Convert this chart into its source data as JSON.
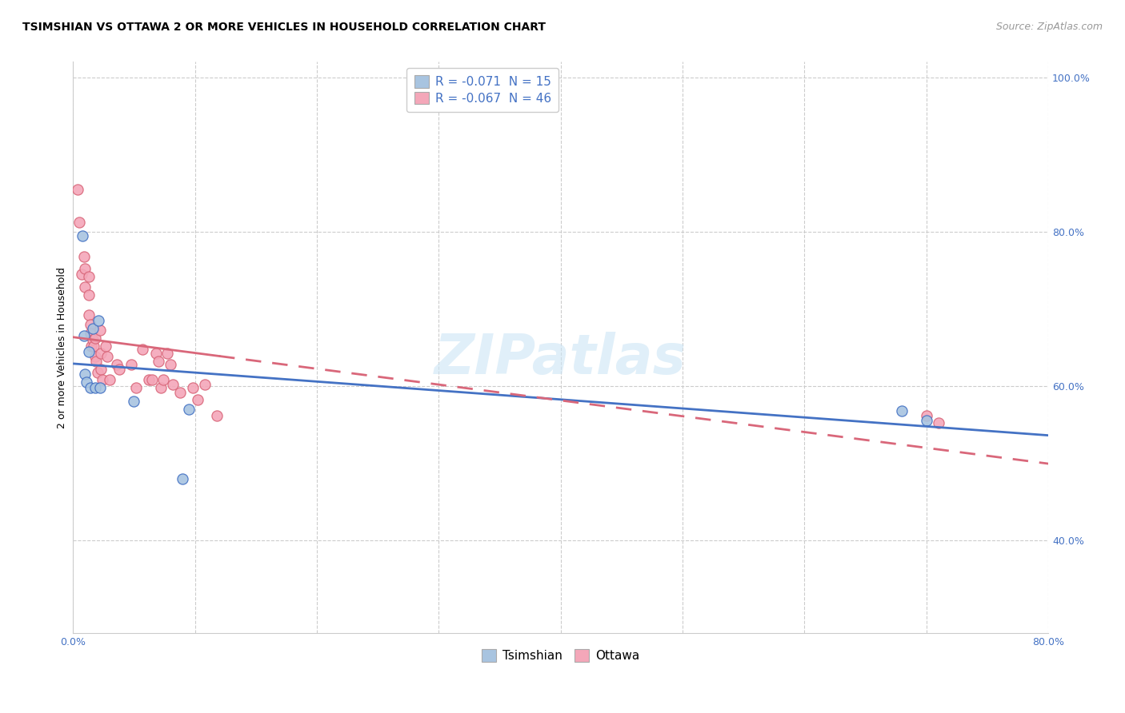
{
  "title": "TSIMSHIAN VS OTTAWA 2 OR MORE VEHICLES IN HOUSEHOLD CORRELATION CHART",
  "source": "Source: ZipAtlas.com",
  "ylabel": "2 or more Vehicles in Household",
  "watermark": "ZIPatlas",
  "xlim": [
    0.0,
    0.8
  ],
  "ylim": [
    0.28,
    1.02
  ],
  "yticks": [
    0.4,
    0.6,
    0.8,
    1.0
  ],
  "ytick_labels": [
    "40.0%",
    "60.0%",
    "80.0%",
    "100.0%"
  ],
  "legend_tsimshian": "R = -0.071  N = 15",
  "legend_ottawa": "R = -0.067  N = 46",
  "tsimshian_color": "#a8c4e0",
  "ottawa_color": "#f4a7b9",
  "tsimshian_line_color": "#4472c4",
  "ottawa_line_color": "#d9677a",
  "tsimshian_scatter_x": [
    0.008,
    0.009,
    0.01,
    0.011,
    0.013,
    0.014,
    0.016,
    0.018,
    0.021,
    0.022,
    0.05,
    0.09,
    0.095,
    0.68,
    0.7
  ],
  "tsimshian_scatter_y": [
    0.795,
    0.665,
    0.615,
    0.605,
    0.645,
    0.598,
    0.675,
    0.598,
    0.685,
    0.598,
    0.58,
    0.48,
    0.57,
    0.568,
    0.555
  ],
  "ottawa_scatter_x": [
    0.004,
    0.005,
    0.007,
    0.009,
    0.01,
    0.01,
    0.013,
    0.013,
    0.013,
    0.014,
    0.014,
    0.015,
    0.016,
    0.017,
    0.018,
    0.018,
    0.019,
    0.02,
    0.022,
    0.023,
    0.023,
    0.024,
    0.027,
    0.028,
    0.03,
    0.036,
    0.038,
    0.048,
    0.052,
    0.057,
    0.062,
    0.065,
    0.068,
    0.07,
    0.072,
    0.074,
    0.077,
    0.08,
    0.082,
    0.088,
    0.098,
    0.102,
    0.108,
    0.118,
    0.7,
    0.71
  ],
  "ottawa_scatter_y": [
    0.855,
    0.812,
    0.745,
    0.768,
    0.752,
    0.728,
    0.742,
    0.718,
    0.692,
    0.68,
    0.668,
    0.652,
    0.66,
    0.652,
    0.662,
    0.638,
    0.632,
    0.618,
    0.672,
    0.642,
    0.622,
    0.608,
    0.652,
    0.638,
    0.608,
    0.628,
    0.622,
    0.628,
    0.598,
    0.648,
    0.608,
    0.608,
    0.642,
    0.632,
    0.598,
    0.608,
    0.642,
    0.628,
    0.602,
    0.592,
    0.598,
    0.582,
    0.602,
    0.562,
    0.562,
    0.552
  ],
  "title_fontsize": 10,
  "axis_label_fontsize": 9,
  "tick_fontsize": 9,
  "legend_fontsize": 11,
  "source_fontsize": 9,
  "marker_size": 90
}
